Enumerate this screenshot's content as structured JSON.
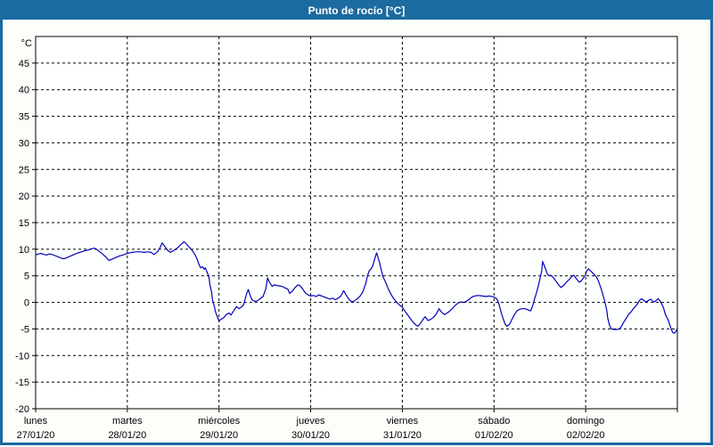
{
  "header": {
    "title": "Punto de rocío [°C]",
    "bg_color": "#1b6aa0",
    "text_color": "#ffffff"
  },
  "chart_data": {
    "type": "line",
    "title": "Punto de rocío [°C]",
    "y_unit_label": "°C",
    "ylabel": "",
    "xlabel": "",
    "ylim": [
      -20,
      50
    ],
    "y_ticks": [
      45,
      40,
      35,
      30,
      25,
      20,
      15,
      10,
      5,
      0,
      -5,
      -10,
      -15,
      -20
    ],
    "grid": "dashed horizontal every 5 and vertical at day boundaries",
    "legend_position": "none",
    "line_color": "#0000bb",
    "frame_color": "#000000",
    "days": [
      {
        "name": "lunes",
        "date": "27/01/20"
      },
      {
        "name": "martes",
        "date": "28/01/20"
      },
      {
        "name": "miércoles",
        "date": "29/01/20"
      },
      {
        "name": "jueves",
        "date": "30/01/20"
      },
      {
        "name": "viernes",
        "date": "31/01/20"
      },
      {
        "name": "sábado",
        "date": "01/02/20"
      },
      {
        "name": "domingo",
        "date": "02/02/20"
      }
    ],
    "x_range_days": [
      0,
      7
    ],
    "series": [
      {
        "name": "Punto de rocío",
        "points": [
          [
            0.0,
            8.9
          ],
          [
            0.03,
            9.1
          ],
          [
            0.06,
            9.2
          ],
          [
            0.09,
            9.0
          ],
          [
            0.12,
            8.9
          ],
          [
            0.15,
            9.1
          ],
          [
            0.18,
            9.0
          ],
          [
            0.21,
            8.8
          ],
          [
            0.24,
            8.6
          ],
          [
            0.28,
            8.3
          ],
          [
            0.31,
            8.2
          ],
          [
            0.34,
            8.4
          ],
          [
            0.38,
            8.7
          ],
          [
            0.42,
            9.0
          ],
          [
            0.46,
            9.3
          ],
          [
            0.5,
            9.5
          ],
          [
            0.54,
            9.7
          ],
          [
            0.58,
            9.9
          ],
          [
            0.61,
            10.1
          ],
          [
            0.64,
            10.2
          ],
          [
            0.67,
            9.9
          ],
          [
            0.7,
            9.5
          ],
          [
            0.73,
            9.1
          ],
          [
            0.76,
            8.6
          ],
          [
            0.8,
            7.9
          ],
          [
            0.83,
            8.1
          ],
          [
            0.87,
            8.4
          ],
          [
            0.91,
            8.7
          ],
          [
            0.95,
            8.9
          ],
          [
            1.0,
            9.2
          ],
          [
            1.05,
            9.4
          ],
          [
            1.1,
            9.5
          ],
          [
            1.14,
            9.5
          ],
          [
            1.18,
            9.4
          ],
          [
            1.22,
            9.5
          ],
          [
            1.26,
            9.4
          ],
          [
            1.29,
            9.0
          ],
          [
            1.33,
            9.5
          ],
          [
            1.36,
            10.4
          ],
          [
            1.38,
            11.2
          ],
          [
            1.41,
            10.5
          ],
          [
            1.44,
            9.8
          ],
          [
            1.47,
            9.4
          ],
          [
            1.51,
            9.8
          ],
          [
            1.55,
            10.3
          ],
          [
            1.58,
            10.8
          ],
          [
            1.62,
            11.4
          ],
          [
            1.65,
            10.9
          ],
          [
            1.68,
            10.3
          ],
          [
            1.71,
            9.7
          ],
          [
            1.74,
            8.9
          ],
          [
            1.76,
            8.2
          ],
          [
            1.78,
            7.2
          ],
          [
            1.8,
            6.5
          ],
          [
            1.82,
            6.7
          ],
          [
            1.84,
            6.2
          ],
          [
            1.85,
            6.5
          ],
          [
            1.87,
            5.7
          ],
          [
            1.89,
            4.8
          ],
          [
            1.9,
            3.5
          ],
          [
            1.92,
            1.8
          ],
          [
            1.93,
            0.4
          ],
          [
            1.95,
            -0.8
          ],
          [
            1.96,
            -1.7
          ],
          [
            1.98,
            -2.6
          ],
          [
            2.0,
            -3.5
          ],
          [
            2.02,
            -3.2
          ],
          [
            2.05,
            -2.9
          ],
          [
            2.08,
            -2.3
          ],
          [
            2.11,
            -2.0
          ],
          [
            2.13,
            -2.4
          ],
          [
            2.16,
            -1.6
          ],
          [
            2.19,
            -0.8
          ],
          [
            2.22,
            -1.2
          ],
          [
            2.25,
            -0.8
          ],
          [
            2.27,
            -0.4
          ],
          [
            2.3,
            1.6
          ],
          [
            2.32,
            2.4
          ],
          [
            2.34,
            1.3
          ],
          [
            2.36,
            0.5
          ],
          [
            2.39,
            0.2
          ],
          [
            2.42,
            0.3
          ],
          [
            2.45,
            0.7
          ],
          [
            2.48,
            1.1
          ],
          [
            2.51,
            2.5
          ],
          [
            2.53,
            4.6
          ],
          [
            2.55,
            3.8
          ],
          [
            2.58,
            3.0
          ],
          [
            2.6,
            3.3
          ],
          [
            2.63,
            3.2
          ],
          [
            2.66,
            3.1
          ],
          [
            2.69,
            3.0
          ],
          [
            2.72,
            2.7
          ],
          [
            2.75,
            2.5
          ],
          [
            2.77,
            1.7
          ],
          [
            2.8,
            2.1
          ],
          [
            2.83,
            2.8
          ],
          [
            2.86,
            3.3
          ],
          [
            2.88,
            3.2
          ],
          [
            2.91,
            2.6
          ],
          [
            2.94,
            1.8
          ],
          [
            2.97,
            1.4
          ],
          [
            3.0,
            1.2
          ],
          [
            3.03,
            1.3
          ],
          [
            3.06,
            1.1
          ],
          [
            3.09,
            1.4
          ],
          [
            3.12,
            1.2
          ],
          [
            3.15,
            1.0
          ],
          [
            3.18,
            0.8
          ],
          [
            3.21,
            0.6
          ],
          [
            3.24,
            0.8
          ],
          [
            3.27,
            0.5
          ],
          [
            3.3,
            0.8
          ],
          [
            3.33,
            1.2
          ],
          [
            3.36,
            2.2
          ],
          [
            3.39,
            1.3
          ],
          [
            3.42,
            0.5
          ],
          [
            3.45,
            0.1
          ],
          [
            3.48,
            0.3
          ],
          [
            3.51,
            0.7
          ],
          [
            3.54,
            1.2
          ],
          [
            3.57,
            2.0
          ],
          [
            3.6,
            3.5
          ],
          [
            3.62,
            5.0
          ],
          [
            3.64,
            6.0
          ],
          [
            3.66,
            6.3
          ],
          [
            3.68,
            7.0
          ],
          [
            3.7,
            8.3
          ],
          [
            3.72,
            9.3
          ],
          [
            3.75,
            7.6
          ],
          [
            3.77,
            6.1
          ],
          [
            3.79,
            4.8
          ],
          [
            3.82,
            3.7
          ],
          [
            3.85,
            2.4
          ],
          [
            3.88,
            1.4
          ],
          [
            3.91,
            0.6
          ],
          [
            3.94,
            0.0
          ],
          [
            3.97,
            -0.5
          ],
          [
            4.0,
            -0.9
          ],
          [
            4.03,
            -1.7
          ],
          [
            4.06,
            -2.4
          ],
          [
            4.09,
            -3.1
          ],
          [
            4.12,
            -3.8
          ],
          [
            4.15,
            -4.3
          ],
          [
            4.17,
            -4.5
          ],
          [
            4.2,
            -3.9
          ],
          [
            4.23,
            -3.1
          ],
          [
            4.25,
            -2.7
          ],
          [
            4.28,
            -3.4
          ],
          [
            4.31,
            -3.2
          ],
          [
            4.34,
            -2.8
          ],
          [
            4.37,
            -2.2
          ],
          [
            4.4,
            -1.2
          ],
          [
            4.43,
            -1.9
          ],
          [
            4.46,
            -2.3
          ],
          [
            4.49,
            -2.0
          ],
          [
            4.52,
            -1.6
          ],
          [
            4.55,
            -1.1
          ],
          [
            4.58,
            -0.5
          ],
          [
            4.61,
            -0.1
          ],
          [
            4.64,
            0.1
          ],
          [
            4.67,
            0.0
          ],
          [
            4.7,
            0.2
          ],
          [
            4.73,
            0.6
          ],
          [
            4.76,
            1.0
          ],
          [
            4.79,
            1.2
          ],
          [
            4.83,
            1.3
          ],
          [
            4.87,
            1.2
          ],
          [
            4.91,
            1.1
          ],
          [
            4.95,
            1.2
          ],
          [
            5.0,
            1.0
          ],
          [
            5.02,
            0.8
          ],
          [
            5.04,
            0.4
          ],
          [
            5.06,
            -0.7
          ],
          [
            5.08,
            -2.0
          ],
          [
            5.1,
            -3.1
          ],
          [
            5.12,
            -4.0
          ],
          [
            5.14,
            -4.5
          ],
          [
            5.17,
            -4.1
          ],
          [
            5.19,
            -3.4
          ],
          [
            5.22,
            -2.4
          ],
          [
            5.25,
            -1.6
          ],
          [
            5.28,
            -1.3
          ],
          [
            5.31,
            -1.2
          ],
          [
            5.34,
            -1.2
          ],
          [
            5.37,
            -1.4
          ],
          [
            5.4,
            -1.6
          ],
          [
            5.42,
            -0.7
          ],
          [
            5.44,
            0.5
          ],
          [
            5.46,
            1.6
          ],
          [
            5.48,
            2.9
          ],
          [
            5.5,
            4.3
          ],
          [
            5.52,
            5.9
          ],
          [
            5.53,
            7.7
          ],
          [
            5.56,
            6.4
          ],
          [
            5.58,
            5.4
          ],
          [
            5.6,
            5.0
          ],
          [
            5.62,
            5.1
          ],
          [
            5.65,
            4.6
          ],
          [
            5.68,
            3.9
          ],
          [
            5.71,
            3.2
          ],
          [
            5.73,
            2.8
          ],
          [
            5.76,
            3.2
          ],
          [
            5.79,
            3.8
          ],
          [
            5.82,
            4.3
          ],
          [
            5.85,
            4.9
          ],
          [
            5.87,
            5.1
          ],
          [
            5.9,
            4.4
          ],
          [
            5.93,
            3.8
          ],
          [
            5.95,
            4.0
          ],
          [
            5.97,
            4.5
          ],
          [
            6.0,
            5.2
          ],
          [
            6.01,
            5.9
          ],
          [
            6.03,
            6.3
          ],
          [
            6.06,
            5.8
          ],
          [
            6.09,
            5.3
          ],
          [
            6.12,
            4.7
          ],
          [
            6.14,
            4.0
          ],
          [
            6.16,
            3.0
          ],
          [
            6.18,
            1.9
          ],
          [
            6.2,
            0.7
          ],
          [
            6.21,
            0.1
          ],
          [
            6.23,
            -1.5
          ],
          [
            6.24,
            -2.9
          ],
          [
            6.26,
            -4.3
          ],
          [
            6.28,
            -5.0
          ],
          [
            6.31,
            -5.1
          ],
          [
            6.34,
            -5.1
          ],
          [
            6.37,
            -5.0
          ],
          [
            6.39,
            -4.5
          ],
          [
            6.42,
            -3.6
          ],
          [
            6.45,
            -2.8
          ],
          [
            6.47,
            -2.2
          ],
          [
            6.49,
            -1.9
          ],
          [
            6.53,
            -1.0
          ],
          [
            6.56,
            -0.4
          ],
          [
            6.59,
            0.4
          ],
          [
            6.61,
            0.7
          ],
          [
            6.63,
            0.4
          ],
          [
            6.66,
            0.1
          ],
          [
            6.69,
            0.4
          ],
          [
            6.71,
            0.6
          ],
          [
            6.74,
            0.1
          ],
          [
            6.76,
            0.2
          ],
          [
            6.79,
            0.7
          ],
          [
            6.81,
            0.3
          ],
          [
            6.83,
            -0.3
          ],
          [
            6.85,
            -1.1
          ],
          [
            6.87,
            -2.3
          ],
          [
            6.89,
            -3.0
          ],
          [
            6.9,
            -3.3
          ],
          [
            6.93,
            -4.9
          ],
          [
            6.95,
            -5.7
          ],
          [
            6.97,
            -5.8
          ],
          [
            6.99,
            -5.3
          ],
          [
            7.0,
            -4.9
          ]
        ]
      }
    ]
  }
}
